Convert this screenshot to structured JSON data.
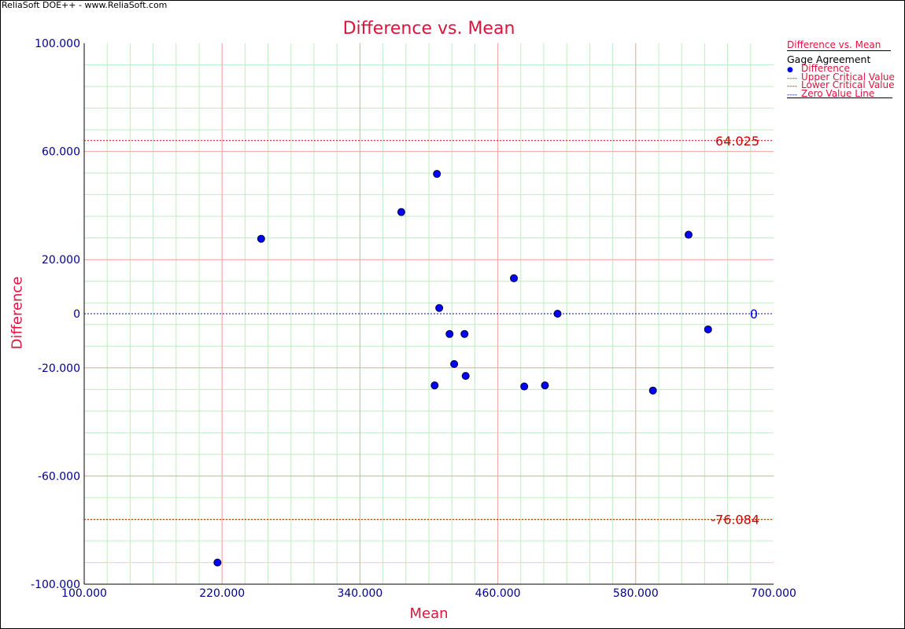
{
  "app": {
    "watermark": "ReliaSoft DOE++ - www.ReliaSoft.com"
  },
  "colors": {
    "title": "#dc143c",
    "axis_text": "#00008b",
    "points": "#0000ff",
    "critical_line": "#cc0000",
    "zero_line": "#0000cc",
    "grid_major": "#f4a6a6",
    "grid_minor": "#bfeebf"
  },
  "legend": {
    "header": "Difference vs. Mean",
    "subheader": "Gage Agreement",
    "items": [
      {
        "label": "Difference",
        "key": "marker"
      },
      {
        "label": "Upper Critical Value",
        "key": "red-dash"
      },
      {
        "label": "Lower Critical Value",
        "key": "red-dash"
      },
      {
        "label": "Zero Value Line",
        "key": "blue-dash"
      }
    ]
  },
  "chart_data": {
    "type": "scatter",
    "title": "Difference vs. Mean",
    "xlabel": "Mean",
    "ylabel": "Difference",
    "xlim": [
      100,
      700
    ],
    "ylim": [
      -100,
      100
    ],
    "x_ticks": [
      "100.000",
      "220.000",
      "340.000",
      "460.000",
      "580.000",
      "700.000"
    ],
    "x_tick_values": [
      100,
      220,
      340,
      460,
      580,
      700
    ],
    "y_ticks": [
      "100.000",
      "60.000",
      "20.000",
      "0",
      "-20.000",
      "-60.000",
      "-100.000"
    ],
    "y_tick_values": [
      100,
      60,
      20,
      0,
      -20,
      -60,
      -100
    ],
    "grid": true,
    "legend_position": "right",
    "series": [
      {
        "name": "Difference",
        "points": [
          [
            216,
            -92.0
          ],
          [
            254,
            27.7
          ],
          [
            376,
            37.6
          ],
          [
            407,
            51.7
          ],
          [
            409,
            2.1
          ],
          [
            405,
            -26.5
          ],
          [
            418,
            -7.5
          ],
          [
            422,
            -18.6
          ],
          [
            431,
            -7.5
          ],
          [
            432,
            -23.0
          ],
          [
            474,
            13.1
          ],
          [
            483,
            -26.9
          ],
          [
            501,
            -26.5
          ],
          [
            512,
            0.0
          ],
          [
            595,
            -28.4
          ],
          [
            626,
            29.2
          ],
          [
            643,
            -5.8
          ]
        ]
      }
    ],
    "reference_lines": [
      {
        "name": "Upper Critical Value",
        "y": 64.025,
        "label": "64.025"
      },
      {
        "name": "Lower Critical Value",
        "y": -76.084,
        "label": "-76.084"
      },
      {
        "name": "Zero Value Line",
        "y": 0,
        "label": "0"
      }
    ]
  }
}
